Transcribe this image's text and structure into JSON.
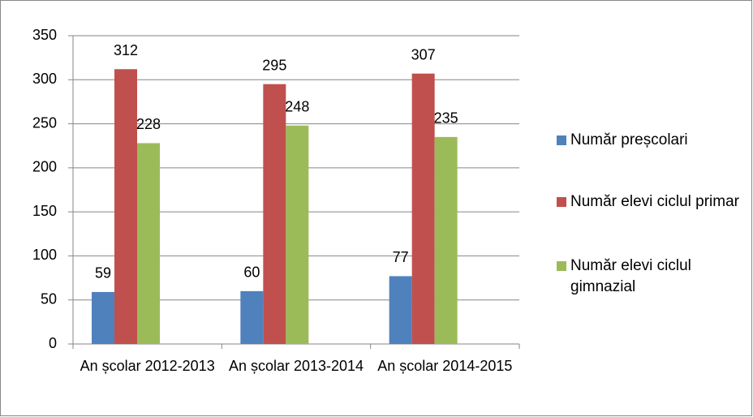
{
  "chart_data": {
    "type": "bar",
    "categories": [
      "An școlar 2012-2013",
      "An școlar 2013-2014",
      "An școlar 2014-2015"
    ],
    "series": [
      {
        "name": "Număr preșcolari",
        "color": "#4f81bd",
        "values": [
          59,
          60,
          77
        ]
      },
      {
        "name": "Număr elevi ciclul primar",
        "color": "#c0504d",
        "values": [
          312,
          295,
          307
        ]
      },
      {
        "name": "Număr elevi ciclul gimnazial",
        "color": "#9bbb59",
        "values": [
          228,
          248,
          235
        ]
      }
    ],
    "ylim": [
      0,
      350
    ],
    "yticks": [
      0,
      50,
      100,
      150,
      200,
      250,
      300,
      350
    ],
    "grid": true,
    "legend": "right"
  }
}
